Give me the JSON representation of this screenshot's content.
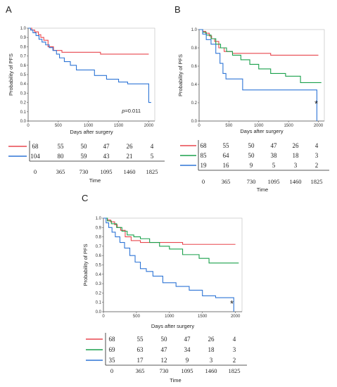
{
  "chart_data": [
    {
      "panel": "A",
      "type": "line",
      "ylabel": "Probability of PFS",
      "xlabel": "Days after surgery",
      "xlim": [
        0,
        2100
      ],
      "ylim": [
        0,
        1.0
      ],
      "xticks": [
        0,
        500,
        1000,
        1500,
        2000
      ],
      "yticks": [
        0.0,
        0.1,
        0.2,
        0.3,
        0.4,
        0.5,
        0.6,
        0.7,
        0.8,
        0.9,
        1.0
      ],
      "ytick_labels": [
        "0.0",
        "0.1",
        "0.2",
        "0.3",
        "0.4",
        "0.5",
        "0.6",
        "0.7",
        "0.8",
        "0.9",
        "1.0"
      ],
      "annotation": "p=0.011",
      "series": [
        {
          "color": "#e8474e",
          "x": [
            0,
            60,
            110,
            170,
            210,
            260,
            330,
            420,
            560,
            1200,
            2000
          ],
          "y": [
            1.0,
            0.98,
            0.96,
            0.93,
            0.9,
            0.87,
            0.8,
            0.76,
            0.74,
            0.72,
            0.72
          ]
        },
        {
          "color": "#2e75d6",
          "x": [
            0,
            40,
            80,
            130,
            180,
            230,
            290,
            350,
            410,
            470,
            520,
            600,
            700,
            800,
            1100,
            1300,
            1500,
            1650,
            2000,
            2040
          ],
          "y": [
            1.0,
            0.98,
            0.95,
            0.92,
            0.88,
            0.85,
            0.82,
            0.79,
            0.76,
            0.72,
            0.68,
            0.64,
            0.6,
            0.55,
            0.49,
            0.45,
            0.42,
            0.4,
            0.2,
            0.2
          ]
        }
      ],
      "risk_table": {
        "times": [
          "0",
          "365",
          "730",
          "1095",
          "1460",
          "1825"
        ],
        "xlabel": "Time",
        "rows": [
          {
            "color": "#e8474e",
            "values": [
              "68",
              "55",
              "50",
              "47",
              "26",
              "4"
            ]
          },
          {
            "color": "#2e75d6",
            "values": [
              "104",
              "80",
              "59",
              "43",
              "21",
              "5"
            ]
          }
        ]
      }
    },
    {
      "panel": "B",
      "type": "line",
      "ylabel": "Probability of PFS",
      "xlabel": "Days after surgery",
      "xlim": [
        0,
        2100
      ],
      "ylim": [
        0,
        1.0
      ],
      "xticks": [
        0,
        500,
        1000,
        1500,
        2000
      ],
      "yticks": [
        0.0,
        0.2,
        0.4,
        0.6,
        0.8,
        1.0
      ],
      "ytick_labels": [
        "0.0",
        "0.2",
        "0.4",
        "0.6",
        "0.8",
        "1.0"
      ],
      "annotation": "*",
      "series": [
        {
          "color": "#e8474e",
          "x": [
            0,
            60,
            110,
            170,
            210,
            260,
            330,
            420,
            560,
            1200,
            2000
          ],
          "y": [
            1.0,
            0.98,
            0.96,
            0.93,
            0.9,
            0.87,
            0.8,
            0.76,
            0.74,
            0.72,
            0.72
          ]
        },
        {
          "color": "#1aa04b",
          "x": [
            0,
            60,
            120,
            200,
            280,
            360,
            460,
            560,
            700,
            850,
            1000,
            1200,
            1450,
            1700,
            2050
          ],
          "y": [
            1.0,
            0.97,
            0.94,
            0.9,
            0.84,
            0.8,
            0.76,
            0.72,
            0.67,
            0.62,
            0.57,
            0.52,
            0.49,
            0.42,
            0.42
          ]
        },
        {
          "color": "#2e75d6",
          "x": [
            0,
            60,
            120,
            200,
            280,
            350,
            400,
            450,
            730,
            1975,
            1975
          ],
          "y": [
            1.0,
            0.95,
            0.89,
            0.84,
            0.74,
            0.63,
            0.52,
            0.46,
            0.34,
            0.34,
            0.0
          ]
        }
      ],
      "risk_table": {
        "times": [
          "0",
          "365",
          "730",
          "1095",
          "1460",
          "1825"
        ],
        "xlabel": "Time",
        "rows": [
          {
            "color": "#e8474e",
            "values": [
              "68",
              "55",
              "50",
              "47",
              "26",
              "4"
            ]
          },
          {
            "color": "#1aa04b",
            "values": [
              "85",
              "64",
              "50",
              "38",
              "18",
              "3"
            ]
          },
          {
            "color": "#2e75d6",
            "values": [
              "19",
              "16",
              "9",
              "5",
              "3",
              "2"
            ]
          }
        ]
      }
    },
    {
      "panel": "C",
      "type": "line",
      "ylabel": "Probability of PFS",
      "xlabel": "Days after surgery",
      "xlim": [
        0,
        2100
      ],
      "ylim": [
        0,
        1.0
      ],
      "xticks": [
        0,
        500,
        1000,
        1500,
        2000
      ],
      "yticks": [
        0.0,
        0.1,
        0.2,
        0.3,
        0.4,
        0.5,
        0.6,
        0.7,
        0.8,
        0.9,
        1.0
      ],
      "ytick_labels": [
        "0.0",
        "0.1",
        "0.2",
        "0.3",
        "0.4",
        "0.5",
        "0.6",
        "0.7",
        "0.8",
        "0.9",
        "1.0"
      ],
      "annotation": "*",
      "series": [
        {
          "color": "#e8474e",
          "x": [
            0,
            60,
            110,
            170,
            210,
            260,
            330,
            420,
            560,
            1200,
            2000
          ],
          "y": [
            1.0,
            0.98,
            0.96,
            0.93,
            0.9,
            0.87,
            0.8,
            0.76,
            0.74,
            0.72,
            0.72
          ]
        },
        {
          "color": "#1aa04b",
          "x": [
            0,
            60,
            120,
            200,
            280,
            360,
            460,
            560,
            700,
            850,
            1000,
            1200,
            1450,
            1600,
            2050
          ],
          "y": [
            1.0,
            0.97,
            0.94,
            0.9,
            0.86,
            0.82,
            0.8,
            0.78,
            0.74,
            0.7,
            0.67,
            0.61,
            0.57,
            0.52,
            0.52
          ]
        },
        {
          "color": "#2e75d6",
          "x": [
            0,
            40,
            80,
            130,
            180,
            250,
            320,
            400,
            480,
            560,
            650,
            750,
            900,
            1100,
            1300,
            1500,
            1700,
            1975,
            1975
          ],
          "y": [
            1.0,
            0.95,
            0.9,
            0.85,
            0.8,
            0.74,
            0.68,
            0.6,
            0.53,
            0.46,
            0.43,
            0.38,
            0.31,
            0.27,
            0.23,
            0.17,
            0.15,
            0.15,
            0.0
          ]
        }
      ],
      "risk_table": {
        "times": [
          "0",
          "365",
          "730",
          "1095",
          "1460",
          "1825"
        ],
        "xlabel": "Time",
        "rows": [
          {
            "color": "#e8474e",
            "values": [
              "68",
              "55",
              "50",
              "47",
              "26",
              "4"
            ]
          },
          {
            "color": "#1aa04b",
            "values": [
              "69",
              "63",
              "47",
              "34",
              "18",
              "3"
            ]
          },
          {
            "color": "#2e75d6",
            "values": [
              "35",
              "17",
              "12",
              "9",
              "3",
              "2"
            ]
          }
        ]
      }
    }
  ]
}
